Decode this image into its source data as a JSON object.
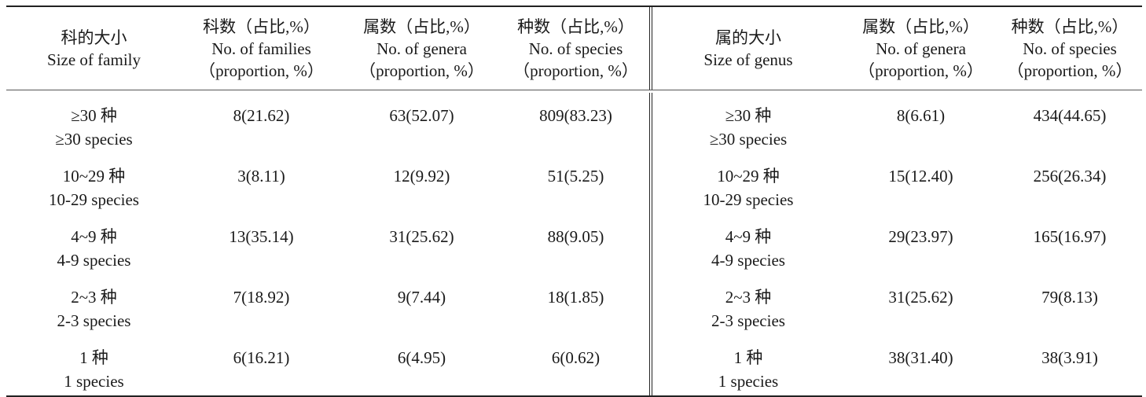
{
  "table": {
    "headers": [
      {
        "zh": "科的大小",
        "en1": "Size of family",
        "en2": ""
      },
      {
        "zh": "科数（占比,%）",
        "en1": "No. of families",
        "en2": "（proportion, %）"
      },
      {
        "zh": "属数（占比,%）",
        "en1": "No. of genera",
        "en2": "（proportion, %）"
      },
      {
        "zh": "种数（占比,%）",
        "en1": "No. of species",
        "en2": "（proportion, %）"
      },
      {
        "zh": "属的大小",
        "en1": "Size of genus",
        "en2": ""
      },
      {
        "zh": "属数（占比,%）",
        "en1": "No. of genera",
        "en2": "（proportion, %）"
      },
      {
        "zh": "种数（占比,%）",
        "en1": "No. of species",
        "en2": "（proportion, %）"
      }
    ],
    "rows": [
      {
        "size_zh": "≥30 种",
        "size_en": "≥30 species",
        "families": "8(21.62)",
        "genera": "63(52.07)",
        "species": "809(83.23)",
        "gsize_zh": "≥30 种",
        "gsize_en": "≥30 species",
        "g_genera": "8(6.61)",
        "g_species": "434(44.65)"
      },
      {
        "size_zh": "10~29 种",
        "size_en": "10-29 species",
        "families": "3(8.11)",
        "genera": "12(9.92)",
        "species": "51(5.25)",
        "gsize_zh": "10~29 种",
        "gsize_en": "10-29 species",
        "g_genera": "15(12.40)",
        "g_species": "256(26.34)"
      },
      {
        "size_zh": "4~9 种",
        "size_en": "4-9 species",
        "families": "13(35.14)",
        "genera": "31(25.62)",
        "species": "88(9.05)",
        "gsize_zh": "4~9 种",
        "gsize_en": "4-9 species",
        "g_genera": "29(23.97)",
        "g_species": "165(16.97)"
      },
      {
        "size_zh": "2~3 种",
        "size_en": "2-3 species",
        "families": "7(18.92)",
        "genera": "9(7.44)",
        "species": "18(1.85)",
        "gsize_zh": "2~3 种",
        "gsize_en": "2-3 species",
        "g_genera": "31(25.62)",
        "g_species": "79(8.13)"
      },
      {
        "size_zh": "1 种",
        "size_en": "1 species",
        "families": "6(16.21)",
        "genera": "6(4.95)",
        "species": "6(0.62)",
        "gsize_zh": "1 种",
        "gsize_en": "1 species",
        "g_genera": "38(31.40)",
        "g_species": "38(3.91)"
      }
    ]
  }
}
